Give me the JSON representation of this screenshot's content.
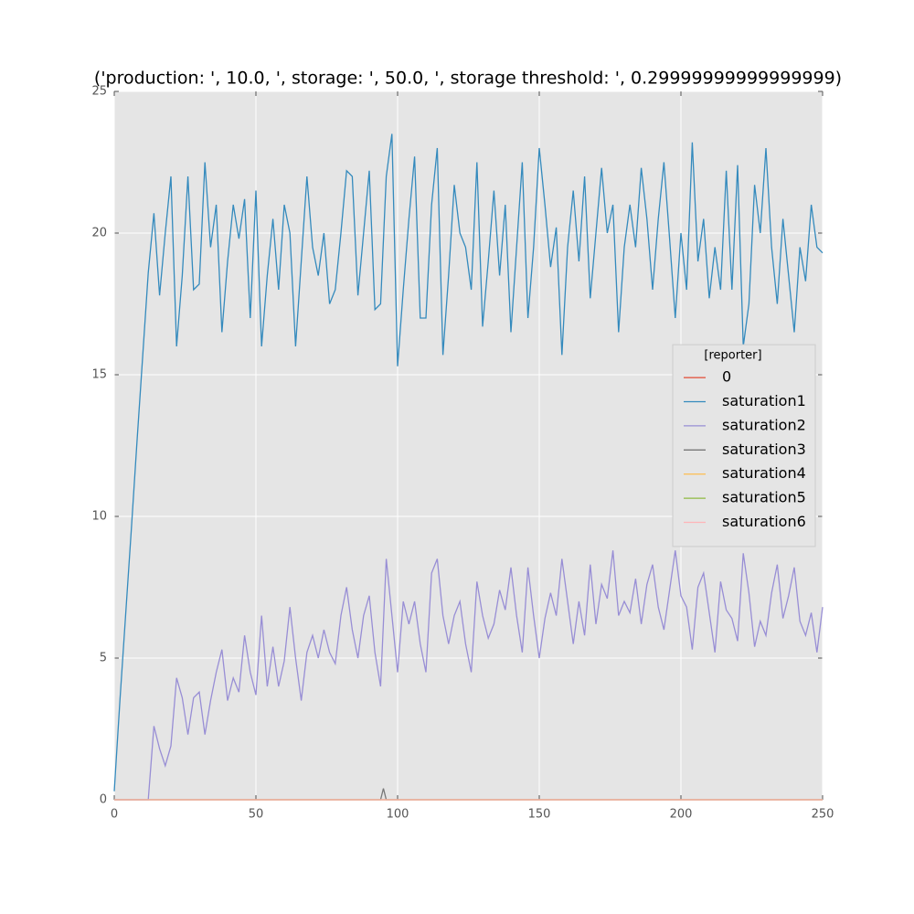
{
  "chart_data": {
    "type": "line",
    "title": "('production: ', 10.0, ', storage: ', 50.0, ', storage threshold: ', 0.29999999999999999)",
    "x": [
      0,
      2,
      4,
      6,
      8,
      10,
      12,
      14,
      16,
      18,
      20,
      22,
      24,
      26,
      28,
      30,
      32,
      34,
      36,
      38,
      40,
      42,
      44,
      46,
      48,
      50,
      52,
      54,
      56,
      58,
      60,
      62,
      64,
      66,
      68,
      70,
      72,
      74,
      76,
      78,
      80,
      82,
      84,
      86,
      88,
      90,
      92,
      94,
      96,
      98,
      100,
      102,
      104,
      106,
      108,
      110,
      112,
      114,
      116,
      118,
      120,
      122,
      124,
      126,
      128,
      130,
      132,
      134,
      136,
      138,
      140,
      142,
      144,
      146,
      148,
      150,
      152,
      154,
      156,
      158,
      160,
      162,
      164,
      166,
      168,
      170,
      172,
      174,
      176,
      178,
      180,
      182,
      184,
      186,
      188,
      190,
      192,
      194,
      196,
      198,
      200,
      202,
      204,
      206,
      208,
      210,
      212,
      214,
      216,
      218,
      220,
      222,
      224,
      226,
      228,
      230,
      232,
      234,
      236,
      238,
      240,
      242,
      244,
      246,
      248,
      250
    ],
    "series": [
      {
        "name": "0",
        "color": "#E24A33",
        "x": [
          0,
          250
        ],
        "values": [
          0,
          0
        ]
      },
      {
        "name": "saturation1",
        "color": "#348ABD",
        "values": [
          0.3,
          3.5,
          6.5,
          9.5,
          12.6,
          15.6,
          18.6,
          20.7,
          17.8,
          20,
          22,
          16,
          18.5,
          22,
          18,
          18.2,
          22.5,
          19.5,
          21,
          16.5,
          19,
          21,
          19.8,
          21.2,
          17,
          21.5,
          16,
          18.5,
          20.5,
          18,
          21,
          20,
          16,
          19,
          22,
          19.5,
          18.5,
          20,
          17.5,
          18,
          20,
          22.2,
          22,
          17.8,
          20,
          22.2,
          17.3,
          17.5,
          22,
          23.5,
          15.3,
          18,
          20.5,
          22.7,
          17,
          17,
          21,
          23,
          15.7,
          18.5,
          21.7,
          20,
          19.5,
          18,
          22.5,
          16.7,
          19,
          21.5,
          18.5,
          21,
          16.5,
          19.5,
          22.5,
          17,
          19.5,
          23,
          21,
          18.8,
          20.2,
          15.7,
          19.5,
          21.5,
          19,
          22,
          17.7,
          20,
          22.3,
          20,
          21,
          16.5,
          19.5,
          21,
          19.5,
          22.3,
          20.5,
          18,
          20.5,
          22.5,
          19.8,
          17,
          20,
          18,
          23.2,
          19,
          20.5,
          17.7,
          19.5,
          18,
          22.2,
          18,
          22.4,
          16,
          17.5,
          21.7,
          20,
          23,
          19.5,
          17.5,
          20.5,
          18.5,
          16.5,
          19.5,
          18.3,
          21,
          19.5,
          19.3
        ]
      },
      {
        "name": "saturation2",
        "color": "#988ED5",
        "values": [
          0,
          0,
          0,
          0,
          0,
          0,
          0,
          2.6,
          1.8,
          1.2,
          1.9,
          4.3,
          3.6,
          2.3,
          3.6,
          3.8,
          2.3,
          3.5,
          4.5,
          5.3,
          3.5,
          4.3,
          3.8,
          5.8,
          4.5,
          3.7,
          6.5,
          4,
          5.4,
          4,
          4.9,
          6.8,
          5,
          3.5,
          5.2,
          5.8,
          5,
          6,
          5.2,
          4.8,
          6.5,
          7.5,
          6,
          5,
          6.5,
          7.2,
          5.2,
          4,
          8.5,
          6.5,
          4.5,
          7,
          6.2,
          7,
          5.5,
          4.5,
          8,
          8.5,
          6.5,
          5.5,
          6.5,
          7,
          5.5,
          4.5,
          7.7,
          6.5,
          5.7,
          6.2,
          7.4,
          6.7,
          8.2,
          6.5,
          5.2,
          8.2,
          6.5,
          5,
          6.4,
          7.3,
          6.5,
          8.5,
          7,
          5.5,
          7,
          5.8,
          8.3,
          6.2,
          7.6,
          7.1,
          8.8,
          6.5,
          7,
          6.6,
          7.8,
          6.2,
          7.6,
          8.3,
          6.8,
          6,
          7.4,
          8.8,
          7.2,
          6.8,
          5.3,
          7.5,
          8,
          6.6,
          5.2,
          7.7,
          6.7,
          6.4,
          5.6,
          8.7,
          7.3,
          5.4,
          6.3,
          5.8,
          7.3,
          8.3,
          6.4,
          7.2,
          8.2,
          6.3,
          5.8,
          6.6,
          5.2,
          6.8
        ]
      },
      {
        "name": "saturation3",
        "color": "#777777",
        "x": [
          0,
          94,
          95,
          96,
          250
        ],
        "values": [
          0,
          0,
          0.4,
          0,
          0
        ]
      },
      {
        "name": "saturation4",
        "color": "#FBC15E",
        "x": [
          0,
          250
        ],
        "values": [
          0,
          0
        ]
      },
      {
        "name": "saturation5",
        "color": "#8EBA42",
        "x": [
          0,
          250
        ],
        "values": [
          0,
          0
        ]
      },
      {
        "name": "saturation6",
        "color": "#FFB5B8",
        "x": [
          0,
          250
        ],
        "values": [
          0,
          0
        ]
      }
    ],
    "xlim": [
      0,
      250
    ],
    "xticks": [
      0,
      50,
      100,
      150,
      200,
      250
    ],
    "ylim": [
      0,
      25
    ],
    "yticks": [
      0,
      5,
      10,
      15,
      20,
      25
    ],
    "grid": true,
    "legend": "right",
    "legend_title": "[reporter]"
  }
}
